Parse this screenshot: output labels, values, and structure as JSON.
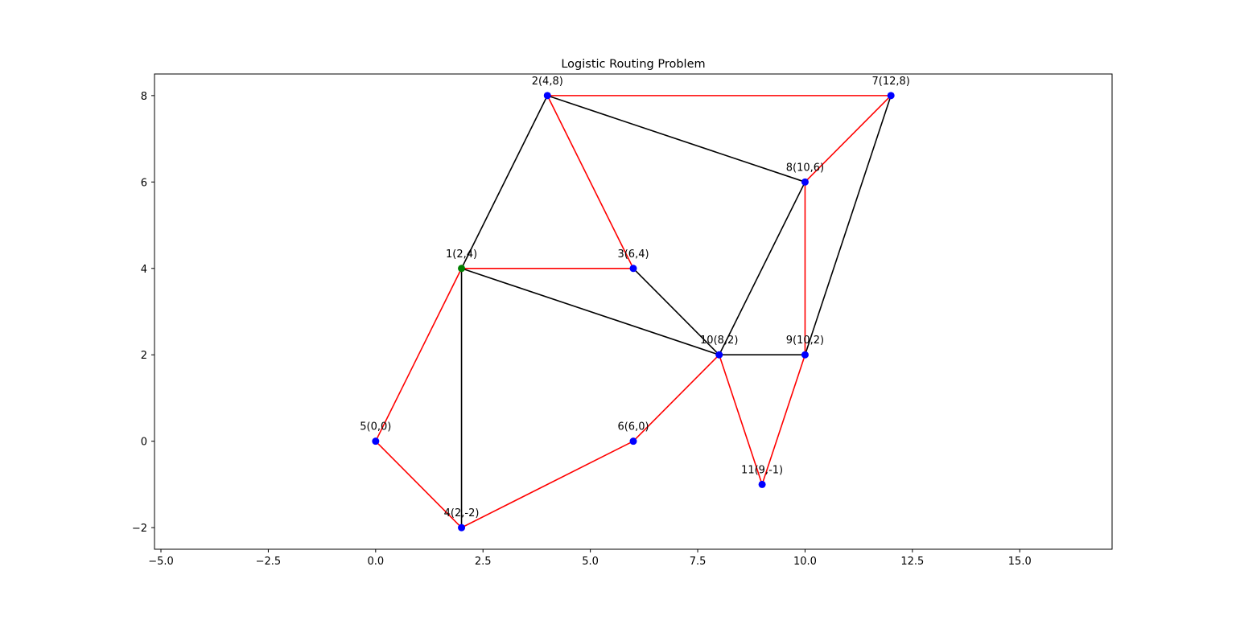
{
  "chart_data": {
    "type": "scatter",
    "title": "Logistic Routing Problem",
    "xlabel": "",
    "ylabel": "",
    "xlim": [
      -5.15,
      17.15
    ],
    "ylim": [
      -2.5,
      8.5
    ],
    "x_ticks": [
      -5.0,
      -2.5,
      0.0,
      2.5,
      5.0,
      7.5,
      10.0,
      12.5,
      15.0
    ],
    "x_tick_labels": [
      "−5.0",
      "−2.5",
      "0.0",
      "2.5",
      "5.0",
      "7.5",
      "10.0",
      "12.5",
      "15.0"
    ],
    "y_ticks": [
      -2,
      0,
      2,
      4,
      6,
      8
    ],
    "y_tick_labels": [
      "−2",
      "0",
      "2",
      "4",
      "6",
      "8"
    ],
    "grid": false,
    "colors": {
      "route": "#ff0000",
      "other_edge": "#000000",
      "node": "#0000ff",
      "depot": "#008000"
    },
    "nodes": [
      {
        "id": 1,
        "label": "1(2,4)",
        "x": 2,
        "y": 4,
        "depot": true
      },
      {
        "id": 2,
        "label": "2(4,8)",
        "x": 4,
        "y": 8
      },
      {
        "id": 3,
        "label": "3(6,4)",
        "x": 6,
        "y": 4
      },
      {
        "id": 4,
        "label": "4(2,-2)",
        "x": 2,
        "y": -2
      },
      {
        "id": 5,
        "label": "5(0,0)",
        "x": 0,
        "y": 0
      },
      {
        "id": 6,
        "label": "6(6,0)",
        "x": 6,
        "y": 0
      },
      {
        "id": 7,
        "label": "7(12,8)",
        "x": 12,
        "y": 8
      },
      {
        "id": 8,
        "label": "8(10,6)",
        "x": 10,
        "y": 6
      },
      {
        "id": 9,
        "label": "9(10,2)",
        "x": 10,
        "y": 2
      },
      {
        "id": 10,
        "label": "10(8,2)",
        "x": 8,
        "y": 2
      },
      {
        "id": 11,
        "label": "11(9,-1)",
        "x": 9,
        "y": -1
      }
    ],
    "edges_black": [
      [
        1,
        2
      ],
      [
        2,
        8
      ],
      [
        1,
        10
      ],
      [
        3,
        10
      ],
      [
        8,
        10
      ],
      [
        10,
        9
      ],
      [
        9,
        7
      ],
      [
        1,
        4
      ]
    ],
    "edges_red": [
      [
        1,
        3
      ],
      [
        3,
        2
      ],
      [
        2,
        7
      ],
      [
        7,
        8
      ],
      [
        8,
        9
      ],
      [
        9,
        11
      ],
      [
        11,
        10
      ],
      [
        10,
        6
      ],
      [
        6,
        4
      ],
      [
        4,
        5
      ],
      [
        5,
        1
      ]
    ]
  }
}
